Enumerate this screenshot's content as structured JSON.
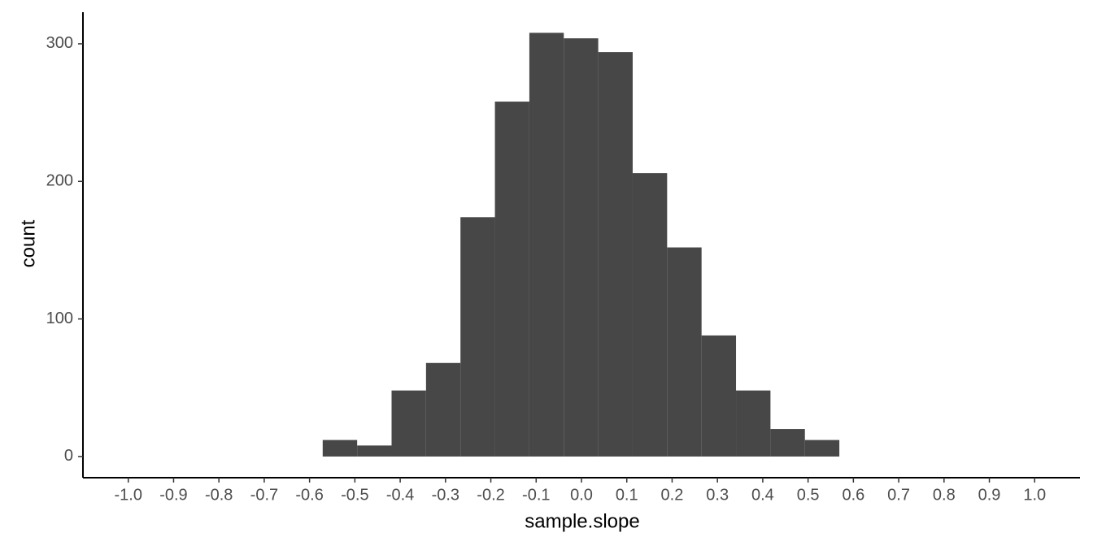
{
  "chart_data": {
    "type": "histogram",
    "x_label": "sample.slope",
    "y_label": "count",
    "bins": [
      -0.571,
      -0.495,
      -0.419,
      -0.343,
      -0.267,
      -0.191,
      -0.115,
      -0.039,
      0.037,
      0.113,
      0.189,
      0.265,
      0.341,
      0.417,
      0.493,
      0.569
    ],
    "values": [
      12,
      8,
      48,
      68,
      174,
      258,
      308,
      304,
      294,
      206,
      152,
      88,
      48,
      20,
      12
    ],
    "color": "#474747",
    "xlim": [
      -1.1,
      1.1
    ],
    "xticks": [
      {
        "value": -1,
        "label": "-1.0"
      },
      -0.9,
      -0.8,
      -0.7,
      -0.6,
      -0.5,
      -0.4,
      -0.3,
      -0.2,
      -0.1,
      {
        "value": 0,
        "label": "0.0"
      },
      0.1,
      0.2,
      0.3,
      0.4,
      0.5,
      0.6,
      0.7,
      0.8,
      0.9,
      {
        "value": 1,
        "label": "1.0"
      }
    ],
    "ylim": [
      -15.4,
      323
    ],
    "yticks": [
      0,
      100,
      200,
      300
    ],
    "grid": false
  }
}
